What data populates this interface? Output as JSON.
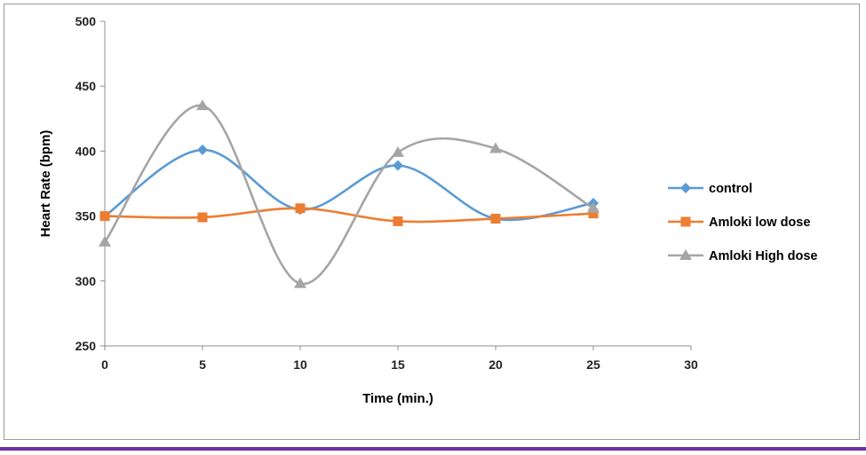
{
  "chart_data": {
    "type": "line",
    "smooth": true,
    "title": "",
    "xlabel": "Time (min.)",
    "ylabel": "Heart Rate (bpm)",
    "x": [
      0,
      5,
      10,
      15,
      20,
      25
    ],
    "xlim": [
      0,
      30
    ],
    "ylim": [
      250,
      500
    ],
    "xticks": [
      "0",
      "5",
      "10",
      "15",
      "20",
      "25",
      "30"
    ],
    "yticks": [
      "250",
      "300",
      "350",
      "400",
      "450",
      "500"
    ],
    "grid": false,
    "legend_position": "right",
    "series": [
      {
        "name": "control",
        "marker": "diamond",
        "color": "#5b9bd5",
        "values": [
          350,
          401,
          355,
          389,
          348,
          360
        ]
      },
      {
        "name": "Amloki low dose",
        "marker": "square",
        "color": "#ed7d31",
        "values": [
          350,
          349,
          356,
          346,
          348,
          352
        ]
      },
      {
        "name": "Amloki High dose",
        "marker": "triangle",
        "color": "#a5a5a5",
        "values": [
          330,
          435,
          298,
          399,
          402,
          356
        ]
      }
    ]
  }
}
